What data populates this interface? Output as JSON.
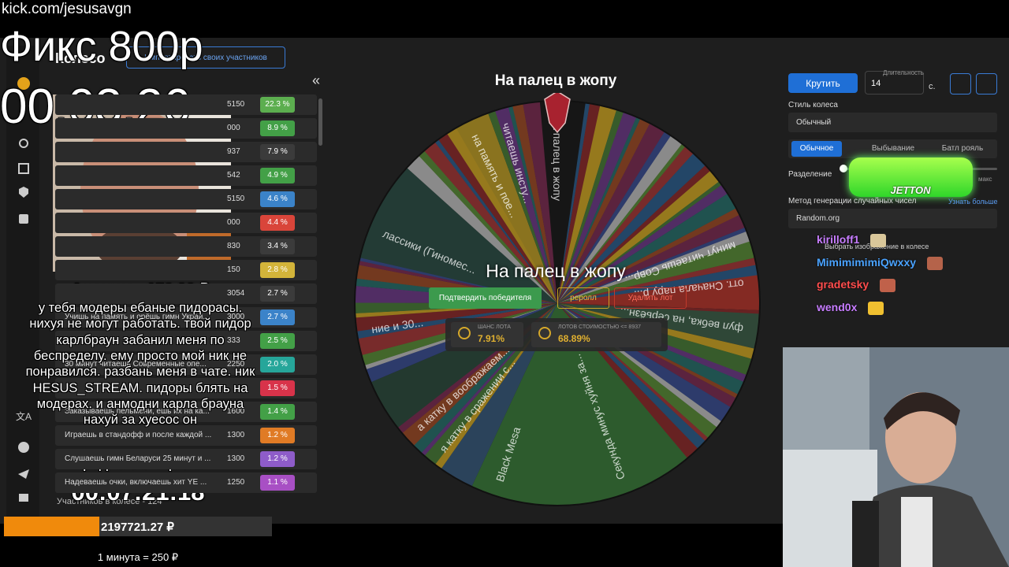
{
  "stream": {
    "url": "kick.com/jesusavgn",
    "fixed_price": "Фикс 800р",
    "timer": "00:03:26"
  },
  "sidebar": {
    "title": "Колесо",
    "import_button": "Импортировать своих участников",
    "collapse": "«",
    "lots": [
      {
        "amount": "5150",
        "chance": "22.3 %"
      },
      {
        "amount": "000",
        "chance": "8.9 %"
      },
      {
        "amount": "937",
        "chance": "7.9 %"
      },
      {
        "amount": "542",
        "chance": "4.9 %"
      },
      {
        "amount": "5150",
        "chance": "4.6 %"
      },
      {
        "amount": "000",
        "chance": "4.4 %"
      },
      {
        "amount": "830",
        "chance": "3.4 %"
      },
      {
        "amount": "150",
        "chance": "2.8 %"
      },
      {
        "amount": "3054",
        "chance": "2.7 %"
      },
      {
        "name": "Учишь на память и орёшь гимн Украи...",
        "amount": "3000",
        "chance": "2.7 %"
      },
      {
        "amount": "333",
        "chance": "2.5 %"
      },
      {
        "name": "30 минут читаешь Современные опе...",
        "amount": "2250",
        "chance": "2.0 %"
      },
      {
        "chance": "1.5 %"
      },
      {
        "name": "Заказываешь пельмени, ешь их на ка...",
        "amount": "1600",
        "chance": "1.4 %"
      },
      {
        "name": "Играешь в стандофф и после каждой ...",
        "amount": "1300",
        "chance": "1.2 %"
      },
      {
        "name": "Слушаешь гимн Беларуси 25 минут и ...",
        "amount": "1300",
        "chance": "1.2 %"
      },
      {
        "name": "Надеваешь очки, включаешь хит YE ...",
        "amount": "1250",
        "chance": "1.1 %"
      }
    ],
    "participants": "Участников в колесе - 124"
  },
  "donation": {
    "author": "Аноним - 150.00 ₽",
    "message": [
      "у тебя модеры ебаные пидорасы.",
      "нихуя не могут работать. твой пидор",
      "карлбраун забанил меня по",
      "беспределу. ему просто мой ник не",
      "понравился. разбань меня в чате. ник",
      "HESUS_STREAM. пидоры блять на",
      "модерах. и анмодни карла брауна",
      "нахуй за хуесос он"
    ]
  },
  "subathon": {
    "label": "Продление стрима",
    "timer": "00:07:21:18",
    "total": "2197721.27 ₽",
    "rate": "1 минута = 250 ₽"
  },
  "wheel": {
    "title": "На палец в жопу",
    "segment_labels": [
      "На палец в жопу",
      "минут читаешь Совр...",
      "отт. Сначала пару р...",
      "фул вебка, на серьёзн...",
      "Секунда минус хуйня за...",
      "Black Mesa",
      "я катку в сражении с...",
      "а катку в воображаем...",
      "ние и 30...",
      "лассики (Гиномес...",
      "на память и пое...",
      "читаешь инсту..."
    ],
    "winner": "На палец в жопу",
    "actions": [
      "Подтвердить победителя",
      "реролл",
      "Удалить лот"
    ],
    "stats": [
      {
        "label": "ШАНС ЛОТА",
        "value": "7.91%"
      },
      {
        "label": "ЛОТОВ СТОИМОСТЬЮ <= 8937",
        "value": "68.89%"
      }
    ]
  },
  "settings": {
    "spin_button": "Крутить",
    "duration_label": "Длительность",
    "duration": "14",
    "duration_unit": "с.",
    "style_label": "Стиль колеса",
    "style": "Обычный",
    "modes": [
      "Обычное",
      "Выбывание",
      "Батл рояль"
    ],
    "split_label": "Разделение",
    "split_max": "макс",
    "rng_label": "Метод генерации случайных чисел",
    "rng_more": "Узнать больше",
    "rng": "Random.org",
    "image_picker": "Выбрать изображение в колесе"
  },
  "chat": [
    "kirilloff1",
    "MimimimimiQwxxy",
    "gradetsky",
    "wend0x"
  ],
  "sponsor": "JETTON"
}
